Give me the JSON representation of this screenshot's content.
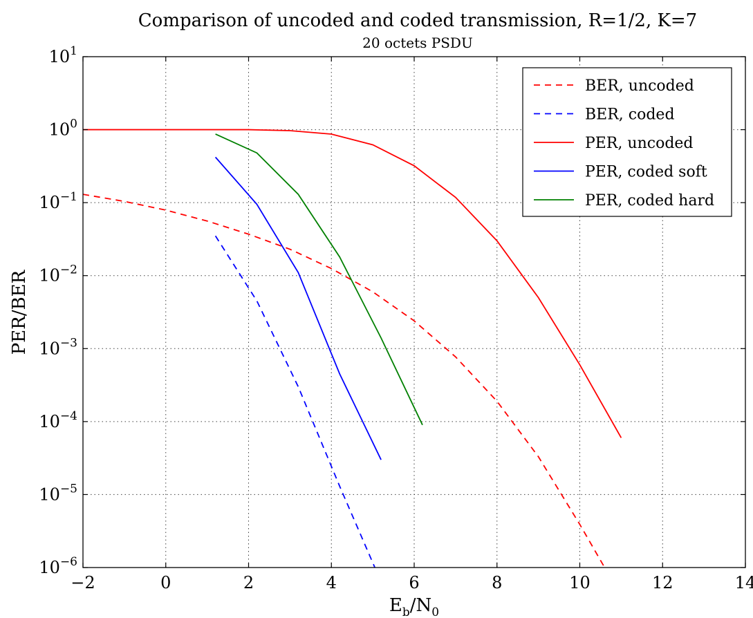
{
  "chart_data": {
    "type": "line",
    "title": "Comparison of uncoded and coded transmission, R=1/2, K=7",
    "subtitle": "20 octets PSDU",
    "xlabel": {
      "base": "E",
      "sub1": "b",
      "mid": "/N",
      "sub2": "0"
    },
    "ylabel": "PER/BER",
    "xlim": [
      -2,
      14
    ],
    "ylim": [
      1e-06,
      10
    ],
    "yscale": "log",
    "grid": true,
    "legend_position": "top-right",
    "x_ticks": [
      {
        "value": -2,
        "label": "−2"
      },
      {
        "value": 0,
        "label": "0"
      },
      {
        "value": 2,
        "label": "2"
      },
      {
        "value": 4,
        "label": "4"
      },
      {
        "value": 6,
        "label": "6"
      },
      {
        "value": 8,
        "label": "8"
      },
      {
        "value": 10,
        "label": "10"
      },
      {
        "value": 12,
        "label": "12"
      },
      {
        "value": 14,
        "label": "14"
      }
    ],
    "y_ticks": [
      {
        "value": 1e-06,
        "base": "10",
        "exp": "−6"
      },
      {
        "value": 1e-05,
        "base": "10",
        "exp": "−5"
      },
      {
        "value": 0.0001,
        "base": "10",
        "exp": "−4"
      },
      {
        "value": 0.001,
        "base": "10",
        "exp": "−3"
      },
      {
        "value": 0.01,
        "base": "10",
        "exp": "−2"
      },
      {
        "value": 0.1,
        "base": "10",
        "exp": "−1"
      },
      {
        "value": 1,
        "base": "10",
        "exp": "0"
      },
      {
        "value": 10,
        "base": "10",
        "exp": "1"
      }
    ],
    "series": [
      {
        "name": "BER, uncoded",
        "color": "#ff0000",
        "dashed": true,
        "x": [
          -2,
          -1,
          0,
          1,
          2,
          3,
          4,
          5,
          6,
          7,
          8,
          9,
          10,
          10.6
        ],
        "y": [
          0.13,
          0.104,
          0.079,
          0.056,
          0.037,
          0.023,
          0.0125,
          0.006,
          0.0024,
          0.00077,
          0.00019,
          3.3e-05,
          3.9e-06,
          1e-06
        ]
      },
      {
        "name": "BER, coded",
        "color": "#0000ff",
        "dashed": true,
        "x": [
          1.2,
          2.2,
          3.2,
          4.2,
          5.05
        ],
        "y": [
          0.035,
          0.0045,
          0.0003,
          1.3e-05,
          1e-06
        ]
      },
      {
        "name": "PER, uncoded",
        "color": "#ff0000",
        "dashed": false,
        "x": [
          -2,
          -1,
          0,
          1,
          2,
          3,
          4,
          5,
          6,
          7,
          8,
          9,
          10,
          11
        ],
        "y": [
          1.0,
          1.0,
          1.0,
          1.0,
          1.0,
          0.97,
          0.87,
          0.62,
          0.32,
          0.118,
          0.03,
          0.005,
          0.0006,
          6e-05
        ]
      },
      {
        "name": "PER, coded soft",
        "color": "#0000ff",
        "dashed": false,
        "x": [
          1.2,
          2.2,
          3.2,
          4.2,
          5.2
        ],
        "y": [
          0.42,
          0.095,
          0.011,
          0.00045,
          3e-05
        ]
      },
      {
        "name": "PER, coded hard",
        "color": "#008000",
        "dashed": false,
        "x": [
          1.2,
          2.2,
          3.2,
          4.2,
          5.2,
          6.2
        ],
        "y": [
          0.87,
          0.48,
          0.13,
          0.018,
          0.0014,
          9e-05
        ]
      }
    ]
  }
}
